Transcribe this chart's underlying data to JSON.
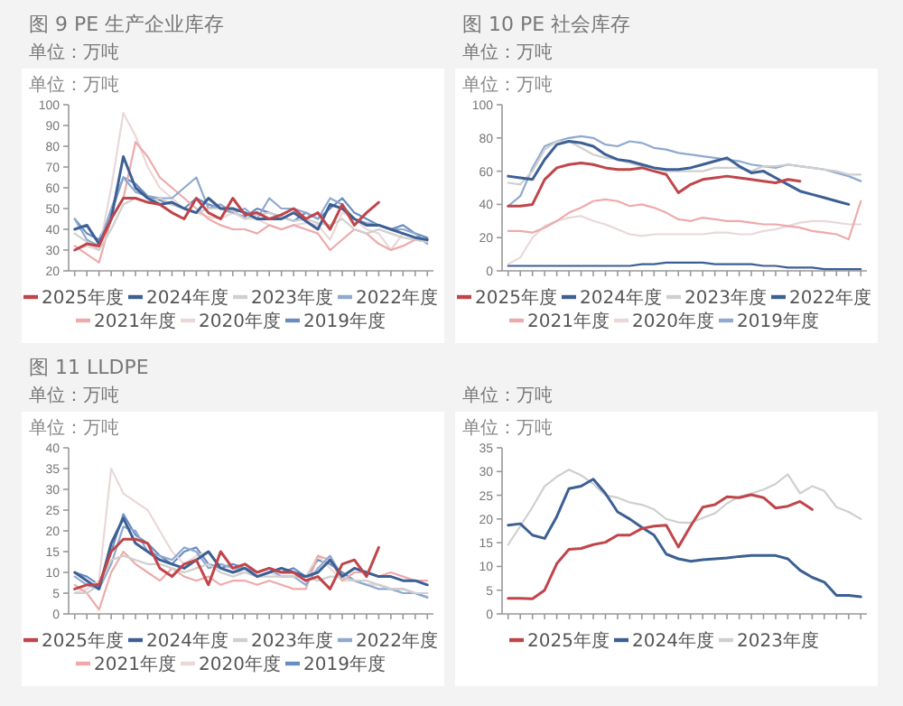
{
  "chart_data": [
    {
      "type": "line",
      "title": "图 9 PE 生产企业库存",
      "subtitle": "单位：万吨",
      "ylabel": "单位：万吨",
      "categories": [
        null,
        null,
        null,
        null,
        null,
        null,
        null,
        null,
        null,
        null,
        null,
        null,
        null,
        null,
        null,
        null,
        null,
        null,
        null,
        null,
        null,
        null,
        null,
        null,
        null,
        null,
        null,
        null,
        null,
        null
      ],
      "ylim": [
        20,
        100
      ],
      "yticks": [
        20,
        30,
        40,
        50,
        60,
        70,
        80,
        90,
        100
      ],
      "tick_labels": "y",
      "legend": "bottom",
      "series": [
        {
          "name": "2025年度",
          "color": "#c0454a",
          "values": [
            30,
            33,
            32,
            45,
            55,
            55,
            53,
            52,
            48,
            45,
            55,
            48,
            45,
            55,
            47,
            48,
            45,
            47,
            50,
            45,
            48,
            40,
            52,
            42,
            48,
            53,
            null,
            null,
            null,
            null
          ]
        },
        {
          "name": "2024年度",
          "color": "#3c5f94",
          "values": [
            40,
            42,
            33,
            45,
            75,
            60,
            55,
            52,
            53,
            50,
            48,
            55,
            50,
            50,
            48,
            45,
            45,
            45,
            48,
            44,
            40,
            52,
            50,
            45,
            42,
            42,
            40,
            38,
            36,
            35
          ]
        },
        {
          "name": "2023年度",
          "color": "#cfcfcf",
          "values": [
            38,
            34,
            30,
            40,
            52,
            55,
            53,
            55,
            52,
            50,
            48,
            50,
            50,
            49,
            45,
            47,
            48,
            46,
            44,
            45,
            43,
            42,
            45,
            40,
            38,
            40,
            38,
            36,
            35,
            34
          ]
        },
        {
          "name": "2022年度",
          "color": "#8fa9cf",
          "values": [
            45,
            35,
            32,
            50,
            65,
            58,
            56,
            55,
            55,
            60,
            65,
            50,
            52,
            48,
            50,
            45,
            55,
            50,
            50,
            48,
            45,
            55,
            52,
            45,
            43,
            42,
            40,
            40,
            38,
            33
          ]
        },
        {
          "name": "2021年度",
          "color": "#eeaaaa",
          "values": [
            32,
            28,
            24,
            45,
            55,
            82,
            75,
            65,
            60,
            55,
            50,
            45,
            42,
            40,
            40,
            38,
            42,
            40,
            42,
            40,
            38,
            30,
            35,
            40,
            38,
            33,
            30,
            32,
            35,
            34
          ]
        },
        {
          "name": "2020年度",
          "color": "#ead8d8",
          "values": [
            30,
            32,
            30,
            60,
            96,
            85,
            70,
            60,
            55,
            50,
            48,
            46,
            45,
            48,
            45,
            45,
            42,
            40,
            42,
            43,
            42,
            35,
            48,
            45,
            40,
            38,
            30,
            38,
            36,
            34
          ]
        },
        {
          "name": "2019年度",
          "color": "#6b8cc0",
          "values": [
            45,
            38,
            35,
            48,
            65,
            62,
            56,
            54,
            52,
            50,
            55,
            52,
            50,
            48,
            46,
            50,
            48,
            46,
            44,
            48,
            45,
            50,
            55,
            48,
            45,
            42,
            40,
            42,
            38,
            36
          ]
        }
      ]
    },
    {
      "type": "line",
      "title": "图 10 PE 社会库存",
      "subtitle": "单位：万吨",
      "ylabel": "单位：万吨",
      "categories": [
        null,
        null,
        null,
        null,
        null,
        null,
        null,
        null,
        null,
        null,
        null,
        null,
        null,
        null,
        null,
        null,
        null,
        null,
        null,
        null,
        null,
        null,
        null,
        null,
        null,
        null,
        null,
        null,
        null,
        null
      ],
      "ylim": [
        0,
        100
      ],
      "yticks": [
        0,
        20,
        40,
        60,
        80,
        100
      ],
      "tick_labels": "y",
      "legend": "bottom",
      "series": [
        {
          "name": "2025年度",
          "color": "#c0454a",
          "values": [
            39,
            39,
            40,
            55,
            62,
            64,
            65,
            64,
            62,
            61,
            61,
            62,
            60,
            58,
            47,
            52,
            55,
            56,
            57,
            56,
            55,
            54,
            53,
            55,
            54,
            null,
            null,
            null,
            null,
            null
          ]
        },
        {
          "name": "2024年度",
          "color": "#3c5f94",
          "values": [
            57,
            56,
            55,
            67,
            76,
            78,
            77,
            75,
            70,
            67,
            66,
            64,
            62,
            61,
            61,
            62,
            64,
            66,
            68,
            63,
            59,
            60,
            56,
            52,
            48,
            46,
            44,
            42,
            40,
            null
          ]
        },
        {
          "name": "2023年度",
          "color": "#cfcfcf",
          "values": [
            53,
            52,
            60,
            73,
            78,
            78,
            74,
            70,
            68,
            67,
            65,
            63,
            62,
            60,
            60,
            60,
            60,
            62,
            62,
            62,
            60,
            63,
            63,
            64,
            63,
            62,
            61,
            60,
            58,
            58
          ]
        },
        {
          "name": "2022年度",
          "color": "#3c5f94",
          "values": [
            3,
            3,
            3,
            3,
            3,
            3,
            3,
            3,
            3,
            3,
            3,
            4,
            4,
            5,
            5,
            5,
            5,
            4,
            4,
            4,
            4,
            3,
            3,
            2,
            2,
            2,
            1,
            1,
            1,
            1
          ]
        },
        {
          "name": "2021年度",
          "color": "#eeaaaa",
          "values": [
            24,
            24,
            23,
            26,
            30,
            35,
            38,
            42,
            43,
            42,
            39,
            40,
            38,
            35,
            31,
            30,
            32,
            31,
            30,
            30,
            29,
            28,
            28,
            27,
            26,
            24,
            23,
            22,
            19,
            42
          ]
        },
        {
          "name": "2020年度",
          "color": "#ead8d8",
          "values": [
            4,
            8,
            20,
            27,
            30,
            32,
            33,
            30,
            28,
            25,
            22,
            21,
            22,
            22,
            22,
            22,
            22,
            23,
            23,
            22,
            22,
            24,
            25,
            27,
            29,
            30,
            30,
            29,
            28,
            28
          ]
        },
        {
          "name": "2019年度",
          "color": "#8fa9cf",
          "values": [
            39,
            45,
            62,
            75,
            78,
            80,
            81,
            80,
            76,
            75,
            78,
            77,
            74,
            73,
            71,
            70,
            69,
            68,
            67,
            66,
            64,
            63,
            62,
            64,
            63,
            62,
            61,
            59,
            57,
            54
          ]
        }
      ]
    },
    {
      "type": "line",
      "title": "图 11 LLDPE",
      "subtitle": "单位：万吨",
      "ylabel": "单位：万吨",
      "categories": [
        null,
        null,
        null,
        null,
        null,
        null,
        null,
        null,
        null,
        null,
        null,
        null,
        null,
        null,
        null,
        null,
        null,
        null,
        null,
        null,
        null,
        null,
        null,
        null,
        null,
        null,
        null,
        null,
        null,
        null
      ],
      "ylim": [
        0,
        40
      ],
      "yticks": [
        0,
        5,
        10,
        15,
        20,
        25,
        30,
        35,
        40
      ],
      "tick_labels": "y",
      "legend": "bottom",
      "series": [
        {
          "name": "2025年度",
          "color": "#c0454a",
          "values": [
            6,
            7,
            7,
            15,
            18,
            18,
            17,
            11,
            9,
            12,
            13,
            7,
            15,
            11,
            12,
            10,
            11,
            10,
            10,
            8,
            9,
            6,
            12,
            13,
            9,
            16,
            null,
            null,
            null,
            null
          ]
        },
        {
          "name": "2024年度",
          "color": "#3c5f94",
          "values": [
            10,
            8,
            6,
            17,
            23,
            17,
            15,
            13,
            12,
            11,
            13,
            15,
            11,
            10,
            11,
            9,
            10,
            11,
            10,
            9,
            10,
            13,
            9,
            11,
            10,
            9,
            9,
            8,
            8,
            7
          ]
        },
        {
          "name": "2023年度",
          "color": "#cfcfcf",
          "values": [
            5,
            5,
            7,
            13,
            14,
            13,
            12,
            12,
            11,
            10,
            11,
            12,
            10,
            9,
            10,
            9,
            9,
            9,
            9,
            9,
            8,
            9,
            9,
            8,
            8,
            7,
            6,
            6,
            5,
            5
          ]
        },
        {
          "name": "2022年度",
          "color": "#8fa9cf",
          "values": [
            9,
            7,
            6,
            12,
            21,
            20,
            15,
            14,
            13,
            16,
            15,
            11,
            12,
            11,
            11,
            10,
            11,
            9,
            9,
            7,
            11,
            14,
            9,
            8,
            7,
            6,
            6,
            5,
            5,
            4
          ]
        },
        {
          "name": "2021年度",
          "color": "#eeaaaa",
          "values": [
            7,
            5,
            1,
            10,
            15,
            12,
            10,
            8,
            11,
            9,
            8,
            9,
            7,
            8,
            8,
            7,
            8,
            7,
            6,
            6,
            14,
            13,
            8,
            10,
            10,
            9,
            10,
            9,
            8,
            8
          ]
        },
        {
          "name": "2020年度",
          "color": "#ead8d8",
          "values": [
            5,
            6,
            8,
            35,
            29,
            27,
            25,
            20,
            15,
            12,
            14,
            15,
            11,
            10,
            10,
            9,
            10,
            9,
            9,
            9,
            14,
            11,
            8,
            8,
            7,
            7,
            6,
            6,
            5,
            5
          ]
        },
        {
          "name": "2019年度",
          "color": "#6b8cc0",
          "values": [
            10,
            9,
            7,
            15,
            24,
            19,
            17,
            14,
            12,
            15,
            16,
            12,
            11,
            12,
            11,
            10,
            11,
            10,
            11,
            9,
            13,
            12,
            10,
            8,
            7,
            7,
            6,
            6,
            5,
            4
          ]
        }
      ]
    },
    {
      "type": "line",
      "subtitle": "单位：万吨",
      "ylabel": "单位：万吨",
      "categories": [
        null,
        null,
        null,
        null,
        null,
        null,
        null,
        null,
        null,
        null,
        null,
        null,
        null,
        null,
        null,
        null,
        null,
        null,
        null,
        null,
        null,
        null,
        null,
        null,
        null,
        null,
        null,
        null,
        null,
        null
      ],
      "ylim": [
        0,
        35
      ],
      "yticks": [
        0,
        5,
        10,
        15,
        20,
        25,
        30,
        35
      ],
      "tick_labels": "y",
      "legend": "bottom",
      "series": [
        {
          "name": "2025年度",
          "color": "#c0454a",
          "values": [
            3.3,
            3.3,
            3.2,
            5,
            10.6,
            13.6,
            13.8,
            14.6,
            15.1,
            16.6,
            16.6,
            18,
            18.5,
            18.7,
            14.1,
            18.5,
            22.5,
            23,
            24.7,
            24.5,
            25.1,
            24.5,
            22.3,
            22.7,
            23.7,
            22,
            null,
            null,
            null,
            null
          ]
        },
        {
          "name": "2024年度",
          "color": "#3c5f94",
          "values": [
            18.7,
            19,
            16.6,
            15.9,
            20.5,
            26.4,
            26.9,
            28.4,
            25.4,
            21.5,
            20,
            18.2,
            16.6,
            12.6,
            11.6,
            11.1,
            11.4,
            11.6,
            11.8,
            12.1,
            12.3,
            12.3,
            12.3,
            11.6,
            9.2,
            7.7,
            6.7,
            3.9,
            3.9,
            3.6
          ]
        },
        {
          "name": "2023年度",
          "color": "#cfcfcf",
          "values": [
            14.6,
            18.5,
            22.5,
            26.9,
            28.9,
            30.4,
            29.2,
            27.4,
            25,
            24.5,
            23.5,
            23,
            22,
            20,
            19.3,
            19.2,
            20.2,
            21.2,
            23.3,
            24.7,
            25.4,
            26.2,
            27.4,
            29.4,
            25.4,
            26.9,
            25.9,
            22.5,
            21.5,
            20
          ]
        }
      ]
    }
  ]
}
